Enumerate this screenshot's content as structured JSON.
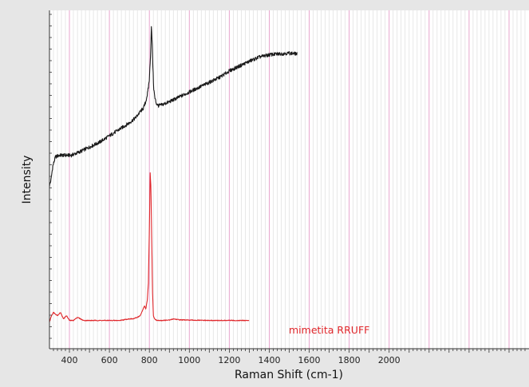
{
  "chart_data": {
    "type": "line",
    "xlabel": "Raman Shift (cm-1)",
    "ylabel": "Intensity",
    "xlim": [
      300,
      2700
    ],
    "ylim": [
      0,
      100
    ],
    "x_ticks": [
      400,
      600,
      800,
      1000,
      1200,
      1400,
      1600,
      1800,
      2000
    ],
    "grid": true,
    "series": [
      {
        "color": "#1a1a1a",
        "x": [
          300,
          308,
          316,
          330,
          350,
          380,
          410,
          450,
          500,
          550,
          600,
          650,
          700,
          730,
          755,
          770,
          782,
          792,
          800,
          806,
          810,
          814,
          818,
          822,
          828,
          835,
          845,
          860,
          880,
          900,
          950,
          1000,
          1050,
          1100,
          1150,
          1200,
          1250,
          1300,
          1350,
          1400,
          1450,
          1500,
          1540
        ],
        "y": [
          48,
          50,
          54,
          57,
          57.5,
          57.5,
          57.5,
          58.5,
          60,
          61.5,
          63.5,
          65.5,
          67.5,
          69,
          71,
          72,
          74,
          77,
          81,
          89,
          97,
          92,
          84,
          78,
          75,
          73.5,
          72.8,
          73,
          73.5,
          74,
          75.5,
          77,
          78.5,
          80,
          81.5,
          83.5,
          85,
          86.5,
          87.8,
          88.5,
          88.8,
          89,
          88.8
        ]
      },
      {
        "name": "mimetita RRUFF",
        "color": "#e0262a",
        "x": [
          300,
          310,
          320,
          330,
          340,
          355,
          370,
          385,
          400,
          420,
          440,
          470,
          500,
          550,
          600,
          650,
          700,
          720,
          740,
          755,
          765,
          775,
          782,
          790,
          795,
          800,
          804,
          808,
          812,
          816,
          820,
          826,
          832,
          840,
          860,
          900,
          920,
          950,
          1000,
          1100,
          1200,
          1300
        ],
        "y": [
          6,
          8,
          9,
          8.5,
          8,
          9,
          7,
          8,
          6.5,
          6.5,
          7.5,
          6.5,
          6.5,
          6.5,
          6.5,
          6.5,
          7,
          7,
          7.5,
          8,
          9.5,
          11,
          10,
          13,
          18,
          35,
          52,
          47,
          30,
          15,
          8,
          7,
          6.7,
          6.5,
          6.5,
          6.6,
          7,
          6.7,
          6.6,
          6.5,
          6.5,
          6.5
        ]
      }
    ]
  }
}
